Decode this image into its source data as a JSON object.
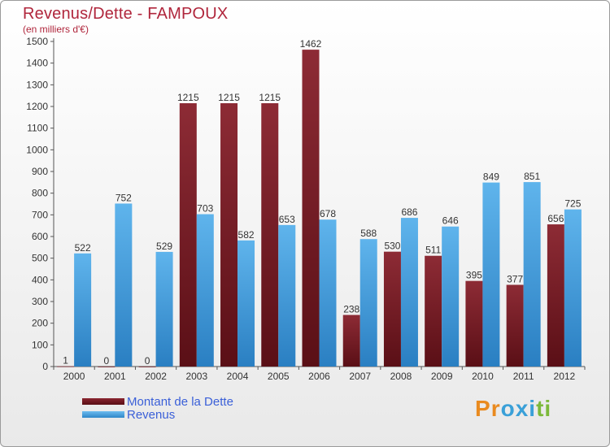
{
  "title": "Revenus/Dette - FAMPOUX",
  "subtitle": "(en milliers d'€)",
  "chart_data": {
    "type": "bar",
    "categories": [
      "2000",
      "2001",
      "2002",
      "2003",
      "2004",
      "2005",
      "2006",
      "2007",
      "2008",
      "2009",
      "2010",
      "2011",
      "2012"
    ],
    "series": [
      {
        "name": "Montant de la Dette",
        "values": [
          1,
          0,
          0,
          1215,
          1215,
          1215,
          1462,
          238,
          530,
          511,
          395,
          377,
          656
        ],
        "color": "#7a1a22"
      },
      {
        "name": "Revenus",
        "values": [
          522,
          752,
          529,
          703,
          582,
          653,
          678,
          588,
          686,
          646,
          849,
          851,
          725
        ],
        "color": "#4aa3e3"
      }
    ],
    "ylim": [
      0,
      1500
    ],
    "yticks": [
      0,
      100,
      200,
      300,
      400,
      500,
      600,
      700,
      800,
      900,
      1000,
      1100,
      1200,
      1300,
      1400,
      1500
    ],
    "grid": false
  },
  "legend": {
    "debt_label": "Montant de la Dette",
    "revenue_label": "Revenus"
  },
  "logo": {
    "letters": [
      "P",
      "r",
      "o",
      "x",
      "i",
      "t",
      "i"
    ],
    "colors": [
      "#e98a1f",
      "#e98a1f",
      "#3aa0d8",
      "#3aa0d8",
      "#3aa0d8",
      "#7cb93a",
      "#7cb93a"
    ]
  }
}
